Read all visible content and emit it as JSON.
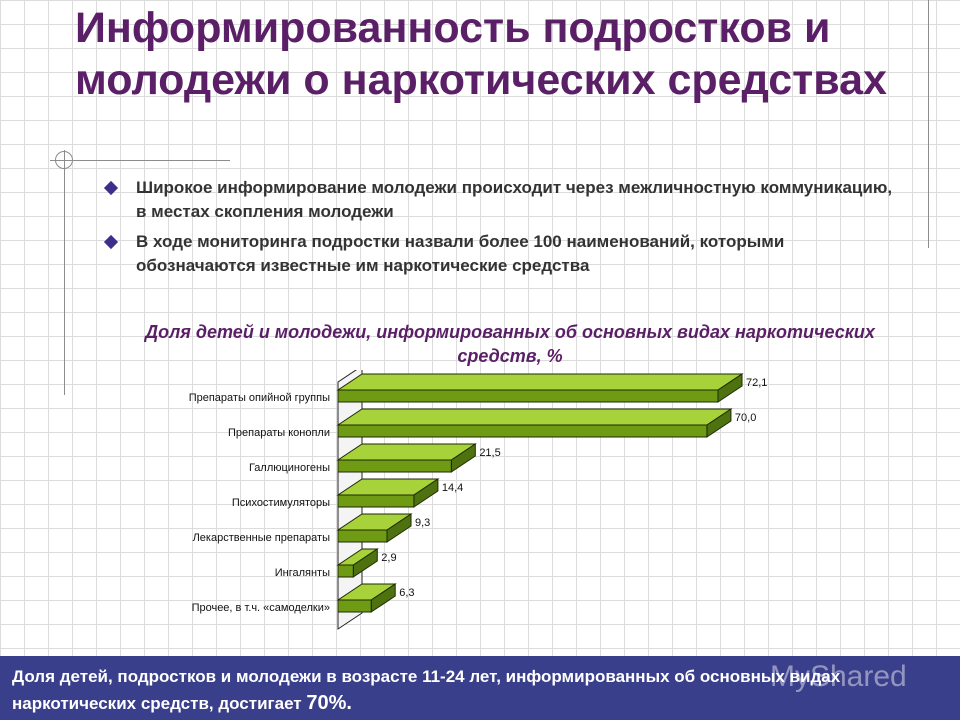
{
  "slide": {
    "title": "Информированность подростков и молодежи о наркотических средствах",
    "bullets": [
      "Широкое информирование молодежи происходит через межличностную коммуникацию, в местах скопления молодежи",
      "В ходе мониторинга подростки назвали более 100 наименований, которыми обозначаются известные им наркотические средства"
    ],
    "footer_text": "Доля детей, подростков и молодежи в возрасте 11-24 лет, информированных об основных видах наркотических средств, достигает ",
    "footer_highlight": "70%.",
    "watermark": "MyShared"
  },
  "chart_data": {
    "type": "bar",
    "orientation": "horizontal",
    "title": "Доля детей и молодежи, информированных об основных видах наркотических средств, %",
    "categories": [
      "Препараты опийной группы",
      "Препараты конопли",
      "Галлюциногены",
      "Психостимуляторы",
      "Лекарственные препараты",
      "Ингалянты",
      "Прочее, в т.ч. «самоделки»"
    ],
    "values": [
      72.1,
      70.0,
      21.5,
      14.4,
      9.3,
      2.9,
      6.3
    ],
    "value_labels": [
      "72,1",
      "70,0",
      "21,5",
      "14,4",
      "9,3",
      "2,9",
      "6,3"
    ],
    "xlim": [
      0,
      75
    ],
    "colors": {
      "bar_front": "#6e9a14",
      "bar_top": "#a7d23a",
      "bar_side": "#4f7210",
      "accent": "#5a1f66"
    }
  }
}
